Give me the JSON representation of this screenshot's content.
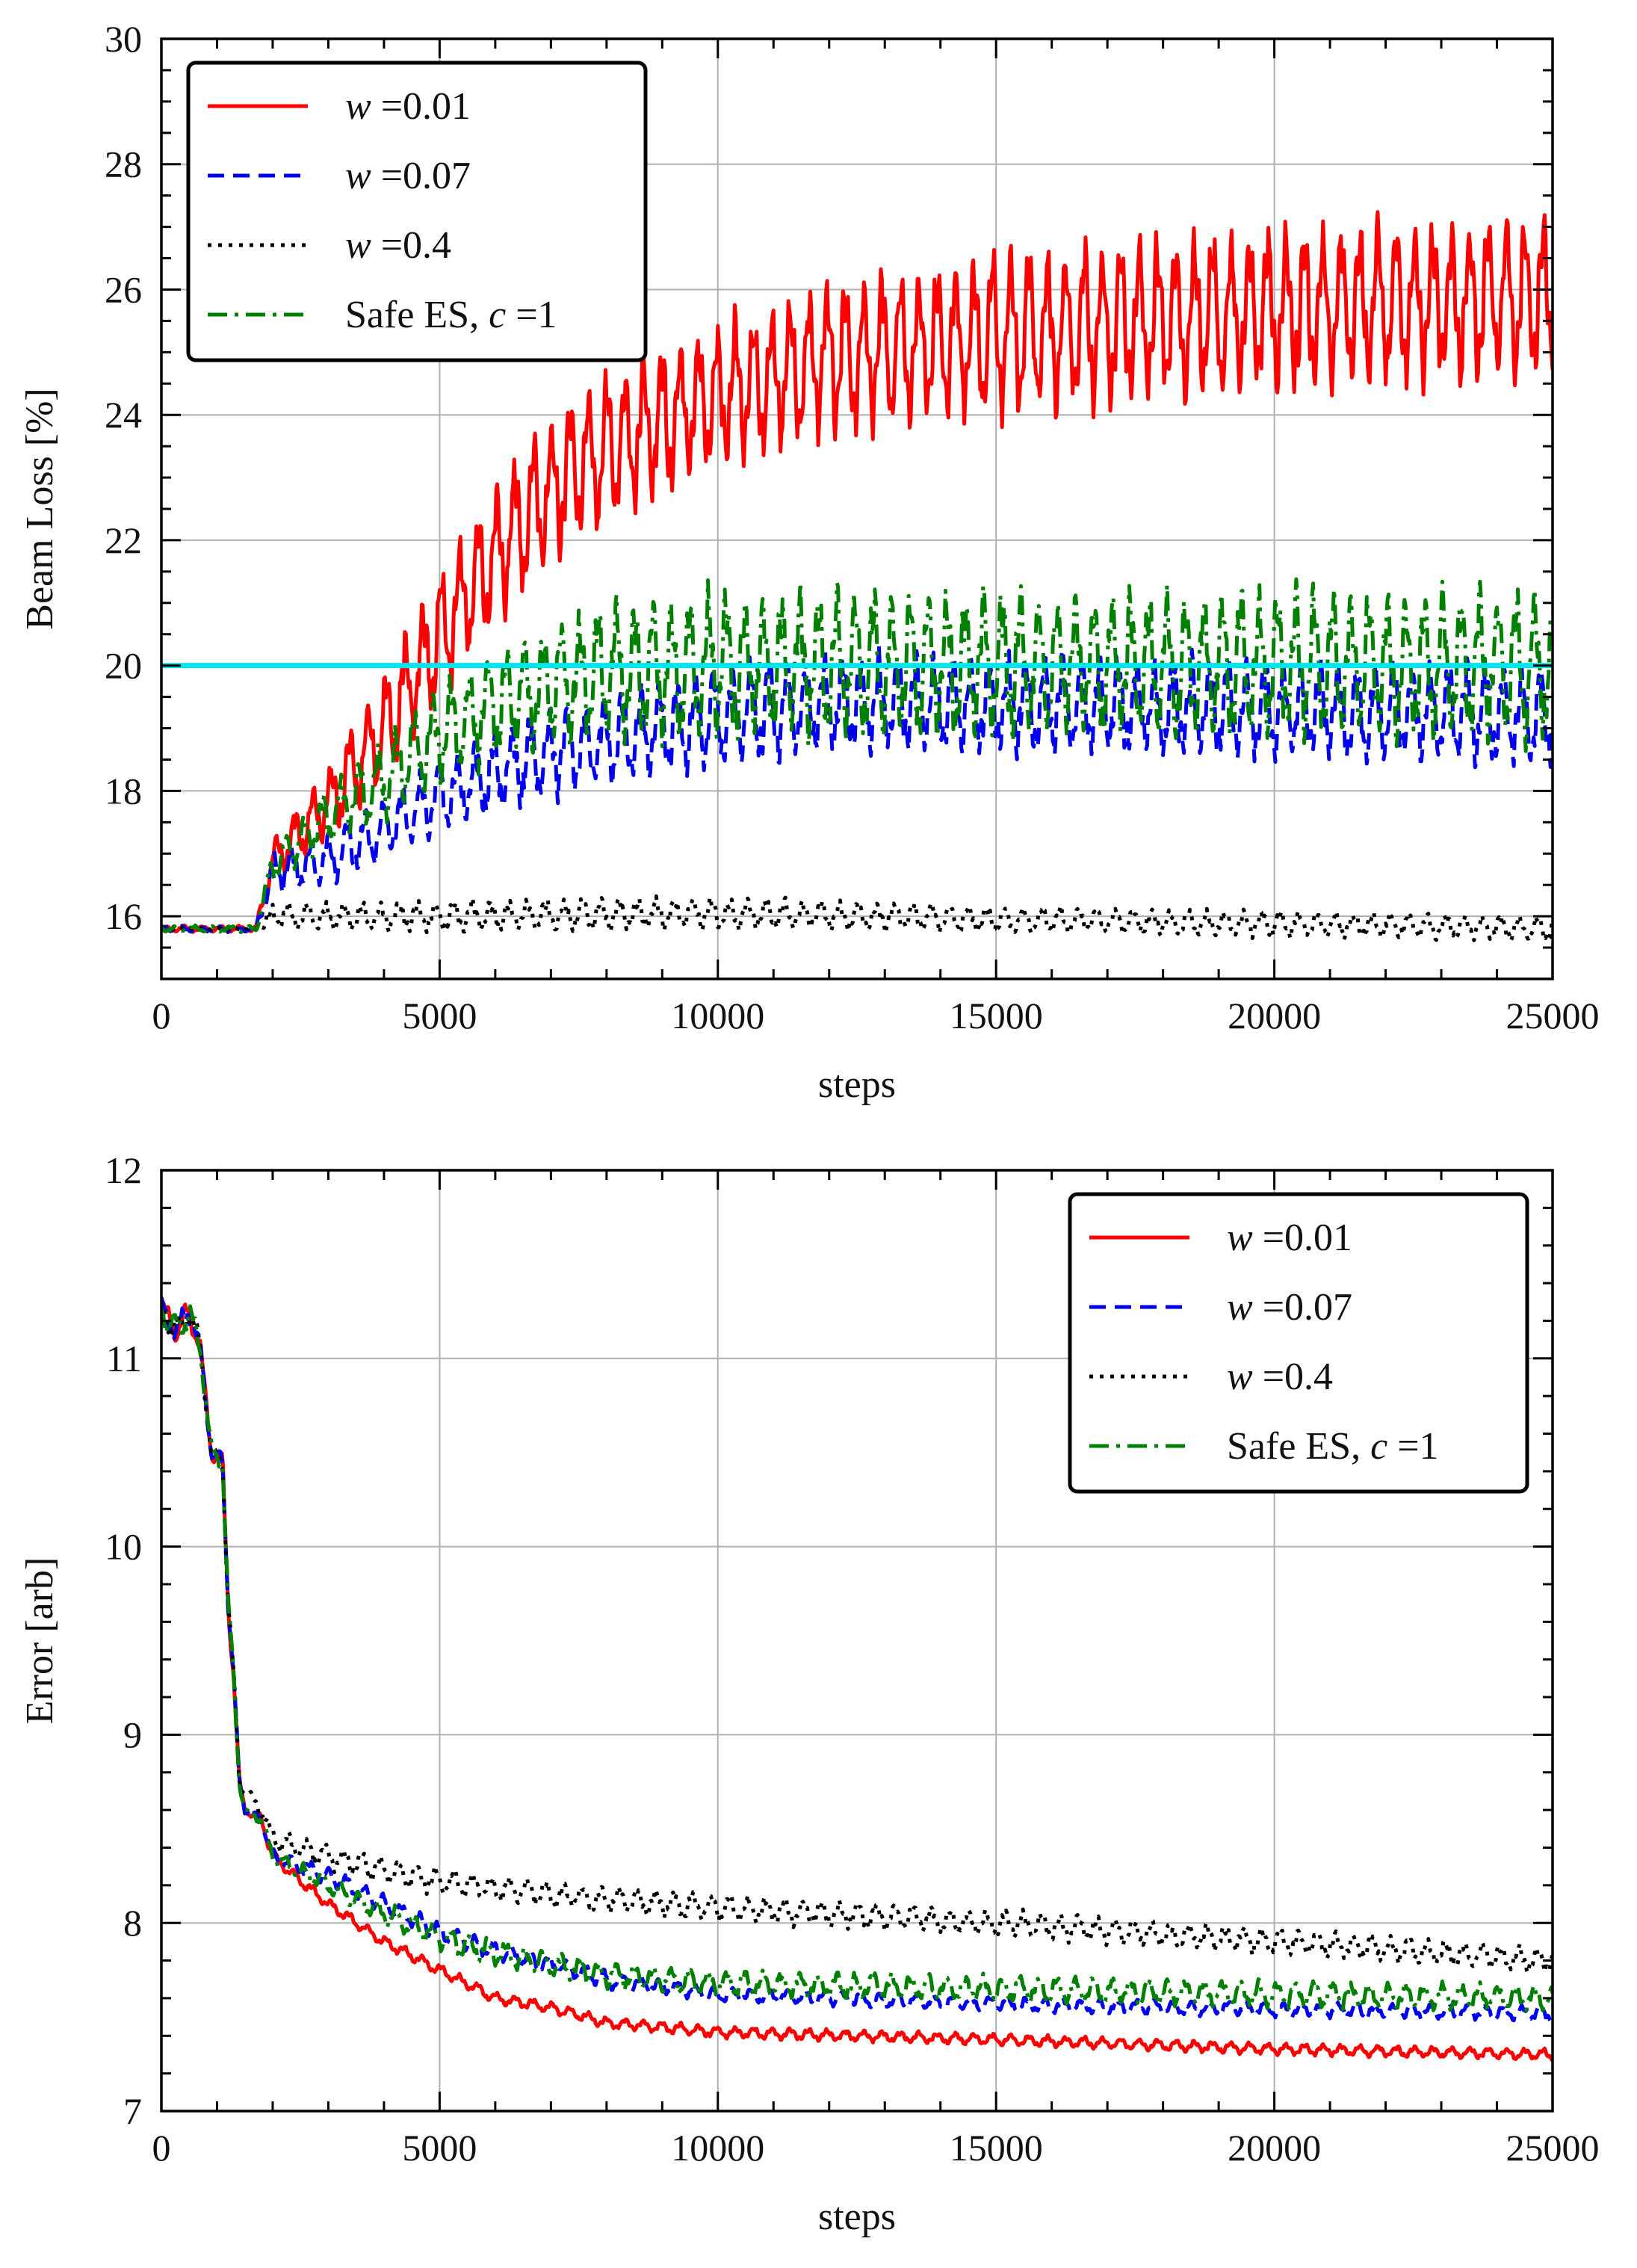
{
  "chart_data": [
    {
      "type": "line",
      "xlabel": "steps",
      "ylabel": "Beam Loss [%]",
      "xlim": [
        0,
        25000
      ],
      "ylim": [
        15,
        30
      ],
      "xticks": [
        0,
        5000,
        10000,
        15000,
        20000,
        25000
      ],
      "yticks": [
        16,
        18,
        20,
        22,
        24,
        26,
        28,
        30
      ],
      "grid": true,
      "legend_position": "top-left",
      "threshold": {
        "y": 20,
        "color": "#00e5ee"
      },
      "legend": [
        {
          "label_italic": "w",
          "label_rest": " =0.01"
        },
        {
          "label_italic": "w",
          "label_rest": " =0.07"
        },
        {
          "label_italic": "w",
          "label_rest": " =0.4"
        },
        {
          "label_prefix": "Safe ES, ",
          "label_italic": "c",
          "label_rest": " =1"
        }
      ],
      "series": [
        {
          "color": "#ff0000",
          "style": "solid",
          "x": [
            0,
            1700,
            2000,
            3000,
            4000,
            5000,
            6000,
            7000,
            8000,
            10000,
            12000,
            15000,
            20000,
            25000
          ],
          "y": [
            15.8,
            15.8,
            16.9,
            17.8,
            19.0,
            20.5,
            21.8,
            22.8,
            23.5,
            24.3,
            24.9,
            25.3,
            25.7,
            25.9
          ],
          "amplitude": [
            0.05,
            0.05,
            0.3,
            0.6,
            0.9,
            1.0,
            1.1,
            1.2,
            1.2,
            1.2,
            1.2,
            1.3,
            1.3,
            1.3
          ]
        },
        {
          "color": "#0000ee",
          "style": "dashed",
          "x": [
            0,
            1700,
            2000,
            3000,
            4000,
            5000,
            6000,
            7000,
            8000,
            10000,
            12000,
            15000,
            20000,
            25000
          ],
          "y": [
            15.8,
            15.8,
            16.7,
            16.9,
            17.4,
            17.9,
            18.3,
            18.6,
            18.8,
            19.2,
            19.4,
            19.4,
            19.3,
            19.2
          ],
          "amplitude": [
            0.05,
            0.05,
            0.3,
            0.4,
            0.5,
            0.6,
            0.7,
            0.7,
            0.7,
            0.8,
            0.8,
            0.8,
            0.8,
            0.8
          ]
        },
        {
          "color": "#000000",
          "style": "dotted",
          "x": [
            0,
            1700,
            2000,
            5000,
            10000,
            15000,
            20000,
            25000
          ],
          "y": [
            15.8,
            15.8,
            16.0,
            16.0,
            16.05,
            15.95,
            15.88,
            15.8
          ],
          "amplitude": [
            0.03,
            0.03,
            0.2,
            0.25,
            0.25,
            0.22,
            0.2,
            0.2
          ]
        },
        {
          "color": "#008000",
          "style": "dashdot",
          "x": [
            0,
            1700,
            2000,
            3000,
            4000,
            5000,
            6000,
            7000,
            8000,
            10000,
            15000,
            20000,
            25000
          ],
          "y": [
            15.8,
            15.8,
            16.8,
            17.6,
            18.2,
            18.9,
            19.4,
            19.7,
            19.9,
            20.0,
            20.0,
            20.0,
            20.0
          ],
          "amplitude": [
            0.05,
            0.05,
            0.3,
            0.5,
            0.7,
            0.8,
            0.9,
            1.0,
            1.1,
            1.2,
            1.2,
            1.2,
            1.2
          ]
        }
      ]
    },
    {
      "type": "line",
      "xlabel": "steps",
      "ylabel": "Error [arb]",
      "xlim": [
        0,
        25000
      ],
      "ylim": [
        7,
        12
      ],
      "xticks": [
        0,
        5000,
        10000,
        15000,
        20000,
        25000
      ],
      "yticks": [
        7,
        8,
        9,
        10,
        11,
        12
      ],
      "grid": true,
      "legend_position": "top-right",
      "legend": [
        {
          "label_italic": "w",
          "label_rest": " =0.01"
        },
        {
          "label_italic": "w",
          "label_rest": " =0.07"
        },
        {
          "label_italic": "w",
          "label_rest": " =0.4"
        },
        {
          "label_prefix": "Safe ES, ",
          "label_italic": "c",
          "label_rest": " =1"
        }
      ],
      "series": [
        {
          "color": "#ff0000",
          "style": "solid",
          "x": [
            0,
            300,
            500,
            700,
            900,
            1100,
            1200,
            1300,
            1400,
            1500,
            1800,
            2000,
            3000,
            4000,
            5000,
            6000,
            7000,
            8000,
            10000,
            15000,
            20000,
            25000
          ],
          "y": [
            11.25,
            11.15,
            11.25,
            11.05,
            10.5,
            10.45,
            9.7,
            9.3,
            8.75,
            8.6,
            8.55,
            8.35,
            8.1,
            7.9,
            7.75,
            7.6,
            7.55,
            7.47,
            7.42,
            7.38,
            7.33,
            7.3
          ],
          "amplitude": [
            0.08,
            0.08,
            0.08,
            0.06,
            0.05,
            0.05,
            0.05,
            0.05,
            0.03,
            0.02,
            0.03,
            0.03,
            0.03,
            0.03,
            0.03,
            0.03,
            0.03,
            0.03,
            0.03,
            0.03,
            0.03,
            0.03
          ]
        },
        {
          "color": "#0000ee",
          "style": "dashed",
          "x": [
            0,
            300,
            500,
            700,
            900,
            1100,
            1200,
            1300,
            1400,
            1500,
            1800,
            2000,
            3000,
            4000,
            5000,
            6000,
            7000,
            8000,
            10000,
            15000,
            20000,
            25000
          ],
          "y": [
            11.25,
            11.15,
            11.25,
            11.05,
            10.5,
            10.45,
            9.7,
            9.3,
            8.75,
            8.6,
            8.55,
            8.35,
            8.25,
            8.1,
            7.95,
            7.85,
            7.78,
            7.7,
            7.62,
            7.57,
            7.54,
            7.52
          ],
          "amplitude": [
            0.08,
            0.08,
            0.08,
            0.06,
            0.05,
            0.05,
            0.05,
            0.05,
            0.03,
            0.02,
            0.03,
            0.04,
            0.05,
            0.05,
            0.05,
            0.05,
            0.05,
            0.05,
            0.04,
            0.04,
            0.04,
            0.04
          ]
        },
        {
          "color": "#000000",
          "style": "dotted",
          "x": [
            0,
            300,
            500,
            700,
            900,
            1100,
            1200,
            1300,
            1400,
            1500,
            1800,
            2000,
            3000,
            4000,
            5000,
            7000,
            10000,
            15000,
            20000,
            25000
          ],
          "y": [
            11.25,
            11.15,
            11.25,
            11.05,
            10.5,
            10.45,
            9.7,
            9.3,
            8.75,
            8.7,
            8.6,
            8.45,
            8.35,
            8.28,
            8.22,
            8.15,
            8.08,
            8.0,
            7.9,
            7.8
          ],
          "amplitude": [
            0.08,
            0.08,
            0.08,
            0.06,
            0.05,
            0.05,
            0.05,
            0.05,
            0.03,
            0.03,
            0.05,
            0.06,
            0.07,
            0.07,
            0.07,
            0.07,
            0.07,
            0.07,
            0.07,
            0.07
          ]
        },
        {
          "color": "#008000",
          "style": "dashdot",
          "x": [
            0,
            300,
            500,
            700,
            900,
            1100,
            1200,
            1300,
            1400,
            1500,
            1800,
            2000,
            3000,
            4000,
            5000,
            6000,
            7000,
            8000,
            10000,
            15000,
            20000,
            25000
          ],
          "y": [
            11.25,
            11.15,
            11.25,
            11.05,
            10.5,
            10.45,
            9.7,
            9.3,
            8.75,
            8.6,
            8.55,
            8.35,
            8.2,
            8.05,
            7.92,
            7.84,
            7.78,
            7.72,
            7.68,
            7.65,
            7.62,
            7.6
          ],
          "amplitude": [
            0.08,
            0.08,
            0.08,
            0.06,
            0.05,
            0.05,
            0.05,
            0.05,
            0.03,
            0.02,
            0.03,
            0.04,
            0.05,
            0.06,
            0.07,
            0.07,
            0.07,
            0.07,
            0.07,
            0.07,
            0.07,
            0.07
          ]
        }
      ]
    }
  ]
}
